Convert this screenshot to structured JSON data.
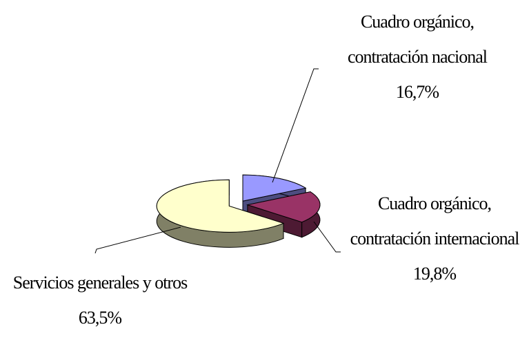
{
  "chart_data": {
    "type": "pie",
    "categories": [
      "Cuadro orgánico, contratación nacional",
      "Cuadro orgánico, contratación internacional",
      "Servicios generales y otros"
    ],
    "values": [
      16.7,
      19.8,
      63.5
    ],
    "value_labels": [
      "16,7%",
      "19,8%",
      "63,5%"
    ],
    "colors": [
      "#9999ff",
      "#993366",
      "#ffffcc"
    ]
  }
}
